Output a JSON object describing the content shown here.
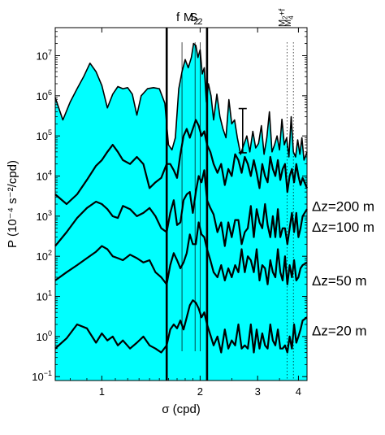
{
  "chart_data": {
    "type": "line",
    "xlabel": "σ (cpd)",
    "ylabel": "P (10⁻⁴ s⁻²/cpd)",
    "xscale": "log",
    "yscale": "log",
    "xlim": [
      0.72,
      4.25
    ],
    "ylim": [
      0.08,
      50000000
    ],
    "grid": false,
    "fill_color": "#00ffff",
    "line_color": "#000000",
    "x_ticks": [
      {
        "value": 1,
        "label": "1"
      },
      {
        "value": 2,
        "label": "2"
      },
      {
        "value": 3,
        "label": "3"
      },
      {
        "value": 4,
        "label": "4"
      }
    ],
    "y_ticks": [
      {
        "value": 0.1,
        "base": "10",
        "exp": "−1"
      },
      {
        "value": 1,
        "base": "10",
        "exp": "0"
      },
      {
        "value": 10,
        "base": "10",
        "exp": "1"
      },
      {
        "value": 100,
        "base": "10",
        "exp": "2"
      },
      {
        "value": 1000,
        "base": "10",
        "exp": "3"
      },
      {
        "value": 10000,
        "base": "10",
        "exp": "4"
      },
      {
        "value": 100000,
        "base": "10",
        "exp": "5"
      },
      {
        "value": 1000000,
        "base": "10",
        "exp": "6"
      },
      {
        "value": 10000000,
        "base": "10",
        "exp": "7"
      }
    ],
    "frequency_markers": [
      {
        "name": "f",
        "label": "f",
        "x": 1.76,
        "style": "thin"
      },
      {
        "name": "m2",
        "label": "M",
        "sub": "2",
        "x": 1.93,
        "style": "thin"
      },
      {
        "name": "s2",
        "label": "S",
        "sub": "2",
        "x": 2.0,
        "style": "thin"
      },
      {
        "name": "m2f",
        "label": "M",
        "sub": "2",
        "tail": "+f",
        "x": 3.69,
        "style": "dotted"
      },
      {
        "name": "m4",
        "label": "M",
        "sub": "4",
        "x": 3.86,
        "style": "dotted"
      }
    ],
    "bold_lines": [
      1.58,
      2.1
    ],
    "error_bar": {
      "x": 2.7,
      "low": 38000,
      "high": 480000
    },
    "series": [
      {
        "name": "",
        "fill": true,
        "x": [
          0.72,
          0.76,
          0.8,
          0.84,
          0.88,
          0.92,
          0.96,
          1.0,
          1.04,
          1.08,
          1.12,
          1.16,
          1.2,
          1.24,
          1.28,
          1.32,
          1.38,
          1.44,
          1.5,
          1.56,
          1.6,
          1.64,
          1.68,
          1.72,
          1.76,
          1.8,
          1.84,
          1.88,
          1.91,
          1.94,
          1.97,
          2.0,
          2.03,
          2.06,
          2.09,
          2.12,
          2.16,
          2.2,
          2.25,
          2.3,
          2.35,
          2.4,
          2.45,
          2.5,
          2.55,
          2.6,
          2.66,
          2.72,
          2.78,
          2.84,
          2.9,
          2.96,
          3.02,
          3.08,
          3.14,
          3.2,
          3.26,
          3.32,
          3.38,
          3.44,
          3.5,
          3.56,
          3.62,
          3.68,
          3.74,
          3.8,
          3.86,
          3.92,
          3.98,
          4.04,
          4.1,
          4.16,
          4.25
        ],
        "values": [
          900000,
          250000,
          700000,
          1500000,
          3000000,
          6500000,
          4000000,
          1800000,
          500000,
          1100000,
          1700000,
          1500000,
          1600000,
          1100000,
          330000,
          1000000,
          1500000,
          1600000,
          1500000,
          650000,
          60000,
          45000,
          90000,
          1500000,
          4000000,
          8000000,
          5000000,
          9000000,
          20000000,
          18000000,
          9000000,
          14000000,
          3500000,
          5000000,
          700000,
          2000000,
          1000000,
          250000,
          1100000,
          300000,
          150000,
          90000,
          800000,
          200000,
          250000,
          90000,
          35000,
          60000,
          100000,
          40000,
          130000,
          50000,
          65000,
          180000,
          35000,
          90000,
          400000,
          40000,
          60000,
          100000,
          45000,
          260000,
          60000,
          90000,
          30000,
          300000,
          40000,
          30000,
          80000,
          35000,
          90000,
          25000,
          40000
        ]
      },
      {
        "name": "",
        "fill": false,
        "label": "Δz=200 m",
        "x": [
          0.72,
          0.78,
          0.84,
          0.9,
          0.96,
          1.0,
          1.04,
          1.08,
          1.12,
          1.16,
          1.22,
          1.28,
          1.34,
          1.4,
          1.46,
          1.52,
          1.58,
          1.62,
          1.66,
          1.7,
          1.74,
          1.78,
          1.82,
          1.86,
          1.9,
          1.94,
          1.98,
          2.02,
          2.06,
          2.1,
          2.15,
          2.2,
          2.26,
          2.32,
          2.38,
          2.44,
          2.5,
          2.56,
          2.62,
          2.68,
          2.74,
          2.8,
          2.86,
          2.92,
          2.98,
          3.04,
          3.1,
          3.16,
          3.22,
          3.28,
          3.34,
          3.4,
          3.46,
          3.52,
          3.58,
          3.64,
          3.7,
          3.76,
          3.82,
          3.88,
          3.94,
          4.0,
          4.06,
          4.12,
          4.25
        ],
        "values": [
          3500,
          2000,
          3500,
          8000,
          18000,
          25000,
          40000,
          60000,
          40000,
          25000,
          20000,
          30000,
          20000,
          5000,
          7000,
          9000,
          20000,
          20000,
          14000,
          9000,
          35000,
          100000,
          150000,
          90000,
          150000,
          250000,
          180000,
          100000,
          130000,
          60000,
          40000,
          20000,
          12000,
          20000,
          6000,
          15000,
          10000,
          35000,
          25000,
          12000,
          30000,
          20000,
          10000,
          25000,
          12000,
          5000,
          20000,
          10000,
          7000,
          30000,
          15000,
          10000,
          25000,
          8000,
          15000,
          20000,
          4000,
          10000,
          15000,
          7000,
          20000,
          10000,
          6000,
          9000,
          5000
        ]
      },
      {
        "name": "",
        "fill": false,
        "label": "Δz=100 m",
        "x": [
          0.72,
          0.78,
          0.84,
          0.9,
          0.96,
          1.0,
          1.04,
          1.08,
          1.12,
          1.16,
          1.22,
          1.28,
          1.34,
          1.4,
          1.46,
          1.52,
          1.58,
          1.62,
          1.66,
          1.7,
          1.74,
          1.78,
          1.82,
          1.86,
          1.9,
          1.94,
          1.98,
          2.02,
          2.06,
          2.1,
          2.15,
          2.2,
          2.26,
          2.32,
          2.38,
          2.44,
          2.5,
          2.56,
          2.62,
          2.68,
          2.74,
          2.8,
          2.86,
          2.92,
          2.98,
          3.04,
          3.1,
          3.16,
          3.22,
          3.28,
          3.34,
          3.4,
          3.46,
          3.52,
          3.58,
          3.64,
          3.7,
          3.76,
          3.82,
          3.88,
          3.94,
          4.0,
          4.06,
          4.12,
          4.25
        ],
        "values": [
          180,
          400,
          900,
          1600,
          2300,
          2000,
          1500,
          1000,
          900,
          1800,
          1500,
          1000,
          1200,
          1600,
          1000,
          500,
          400,
          1200,
          2500,
          600,
          700,
          2500,
          3500,
          4000,
          1200,
          4000,
          10000,
          7000,
          14000,
          2500,
          1600,
          1100,
          400,
          700,
          180,
          700,
          300,
          800,
          800,
          200,
          400,
          500,
          1800,
          300,
          1500,
          700,
          500,
          2000,
          600,
          300,
          1000,
          300,
          1500,
          300,
          500,
          500,
          200,
          500,
          1200,
          400,
          1200,
          300,
          500,
          1000,
          1500
        ]
      },
      {
        "name": "",
        "fill": false,
        "label": "Δz=50 m",
        "x": [
          0.72,
          0.78,
          0.84,
          0.9,
          0.96,
          1.0,
          1.04,
          1.08,
          1.12,
          1.16,
          1.22,
          1.28,
          1.34,
          1.4,
          1.46,
          1.52,
          1.58,
          1.62,
          1.66,
          1.7,
          1.74,
          1.78,
          1.82,
          1.86,
          1.9,
          1.94,
          1.98,
          2.02,
          2.06,
          2.1,
          2.15,
          2.2,
          2.26,
          2.32,
          2.38,
          2.44,
          2.5,
          2.56,
          2.62,
          2.68,
          2.74,
          2.8,
          2.86,
          2.92,
          2.98,
          3.04,
          3.1,
          3.16,
          3.22,
          3.28,
          3.34,
          3.4,
          3.46,
          3.52,
          3.58,
          3.64,
          3.7,
          3.76,
          3.82,
          3.88,
          3.94,
          4.0,
          4.06,
          4.12,
          4.25
        ],
        "values": [
          25,
          40,
          60,
          90,
          130,
          180,
          150,
          100,
          90,
          80,
          110,
          90,
          70,
          80,
          40,
          30,
          20,
          60,
          120,
          80,
          50,
          70,
          120,
          350,
          200,
          200,
          700,
          350,
          300,
          150,
          80,
          40,
          30,
          60,
          25,
          50,
          30,
          60,
          40,
          150,
          40,
          100,
          80,
          40,
          150,
          25,
          60,
          50,
          20,
          80,
          40,
          30,
          150,
          40,
          25,
          100,
          20,
          60,
          30,
          80,
          25,
          30,
          50,
          60,
          70
        ]
      },
      {
        "name": "",
        "fill": false,
        "label": "Δz=20 m",
        "x": [
          0.72,
          0.78,
          0.84,
          0.9,
          0.96,
          1.0,
          1.04,
          1.08,
          1.12,
          1.16,
          1.22,
          1.28,
          1.34,
          1.4,
          1.46,
          1.52,
          1.58,
          1.62,
          1.66,
          1.7,
          1.74,
          1.78,
          1.82,
          1.86,
          1.9,
          1.94,
          1.98,
          2.02,
          2.06,
          2.1,
          2.15,
          2.2,
          2.26,
          2.32,
          2.38,
          2.44,
          2.5,
          2.56,
          2.62,
          2.68,
          2.74,
          2.8,
          2.86,
          2.92,
          2.98,
          3.04,
          3.1,
          3.16,
          3.22,
          3.28,
          3.34,
          3.4,
          3.46,
          3.52,
          3.58,
          3.64,
          3.7,
          3.76,
          3.82,
          3.88,
          3.94,
          4.0,
          4.06,
          4.12,
          4.25
        ],
        "values": [
          0.5,
          0.9,
          2,
          1.6,
          0.7,
          1.2,
          0.8,
          1,
          0.6,
          0.8,
          0.5,
          0.7,
          1,
          0.6,
          0.5,
          0.4,
          0.6,
          1.5,
          2,
          1.6,
          2.5,
          1.5,
          3,
          6,
          8,
          7,
          5,
          3,
          4,
          2,
          1.1,
          0.6,
          1,
          0.4,
          1.5,
          0.5,
          0.8,
          0.6,
          2,
          0.5,
          0.6,
          0.5,
          2,
          0.4,
          1.5,
          0.5,
          1.2,
          0.6,
          0.5,
          2,
          0.8,
          0.6,
          1.5,
          0.5,
          0.5,
          0.6,
          0.4,
          1,
          0.5,
          2,
          0.7,
          1,
          1.5,
          2.5,
          3
        ]
      }
    ]
  }
}
